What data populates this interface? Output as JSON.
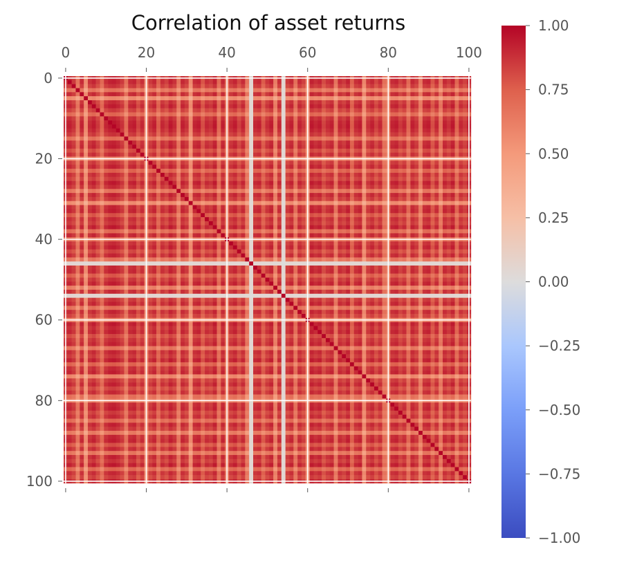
{
  "chart_data": {
    "type": "heatmap",
    "title": "Correlation of asset returns",
    "n_assets": 101,
    "value_model": "correlation(i,j) = loading[i]*loading[j], diagonal = 1",
    "loadings": [
      0.93,
      0.95,
      0.9,
      0.7,
      0.94,
      0.6,
      0.92,
      0.96,
      0.88,
      0.75,
      0.93,
      0.97,
      0.98,
      0.95,
      0.9,
      0.72,
      0.94,
      0.96,
      0.85,
      0.93,
      0.62,
      0.9,
      0.95,
      0.78,
      0.93,
      0.88,
      0.97,
      0.92,
      0.7,
      0.95,
      0.9,
      0.6,
      0.94,
      0.96,
      0.82,
      0.93,
      0.9,
      0.97,
      0.74,
      0.95,
      0.68,
      0.92,
      0.96,
      0.86,
      0.94,
      0.7,
      0.05,
      0.93,
      0.95,
      0.8,
      0.91,
      0.96,
      0.66,
      0.93,
      0.05,
      0.9,
      0.95,
      0.72,
      0.94,
      0.88,
      0.6,
      0.97,
      0.93,
      0.96,
      0.85,
      0.92,
      0.95,
      0.7,
      0.94,
      0.9,
      0.97,
      0.78,
      0.93,
      0.96,
      0.62,
      0.9,
      0.95,
      0.86,
      0.93,
      0.72,
      0.65,
      0.94,
      0.96,
      0.88,
      0.93,
      0.75,
      0.95,
      0.9,
      0.68,
      0.94,
      0.96,
      0.82,
      0.93,
      0.7,
      0.95,
      0.9,
      0.97,
      0.76,
      0.93,
      0.88,
      0.95
    ],
    "x_ticks": [
      "0",
      "20",
      "40",
      "60",
      "80",
      "100"
    ],
    "y_ticks": [
      "0",
      "20",
      "40",
      "60",
      "80",
      "100"
    ],
    "colorbar": {
      "colormap": "coolwarm",
      "range": [
        -1,
        1
      ],
      "ticks": [
        "1.00",
        "0.75",
        "0.50",
        "0.25",
        "0.00",
        "−0.25",
        "−0.50",
        "−0.75",
        "−1.00"
      ]
    },
    "grid": true
  }
}
